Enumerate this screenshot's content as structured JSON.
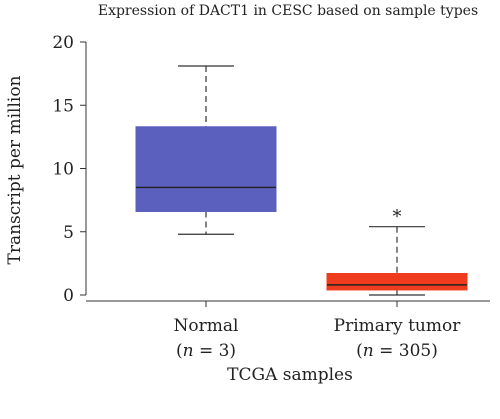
{
  "chart_data": {
    "type": "box",
    "title": "Expression of DACT1 in CESC based on sample types",
    "xlabel": "TCGA samples",
    "ylabel": "Transcript per million",
    "ylim": [
      0,
      20
    ],
    "yticks": [
      0,
      5,
      10,
      15,
      20
    ],
    "groups": [
      {
        "label": "Normal",
        "n_label": "= 3)",
        "n_prefix": "(",
        "n_symbol": "n",
        "min": 4.8,
        "q1": 6.6,
        "median": 8.5,
        "q3": 13.3,
        "max": 18.1,
        "color": "#5b5fbe",
        "annotation": ""
      },
      {
        "label": "Primary tumor",
        "n_label": "= 305)",
        "n_prefix": "(",
        "n_symbol": "n",
        "min": 0,
        "q1": 0.4,
        "median": 0.8,
        "q3": 1.7,
        "max": 5.4,
        "color": "#f03c1e",
        "annotation": "*"
      }
    ]
  }
}
